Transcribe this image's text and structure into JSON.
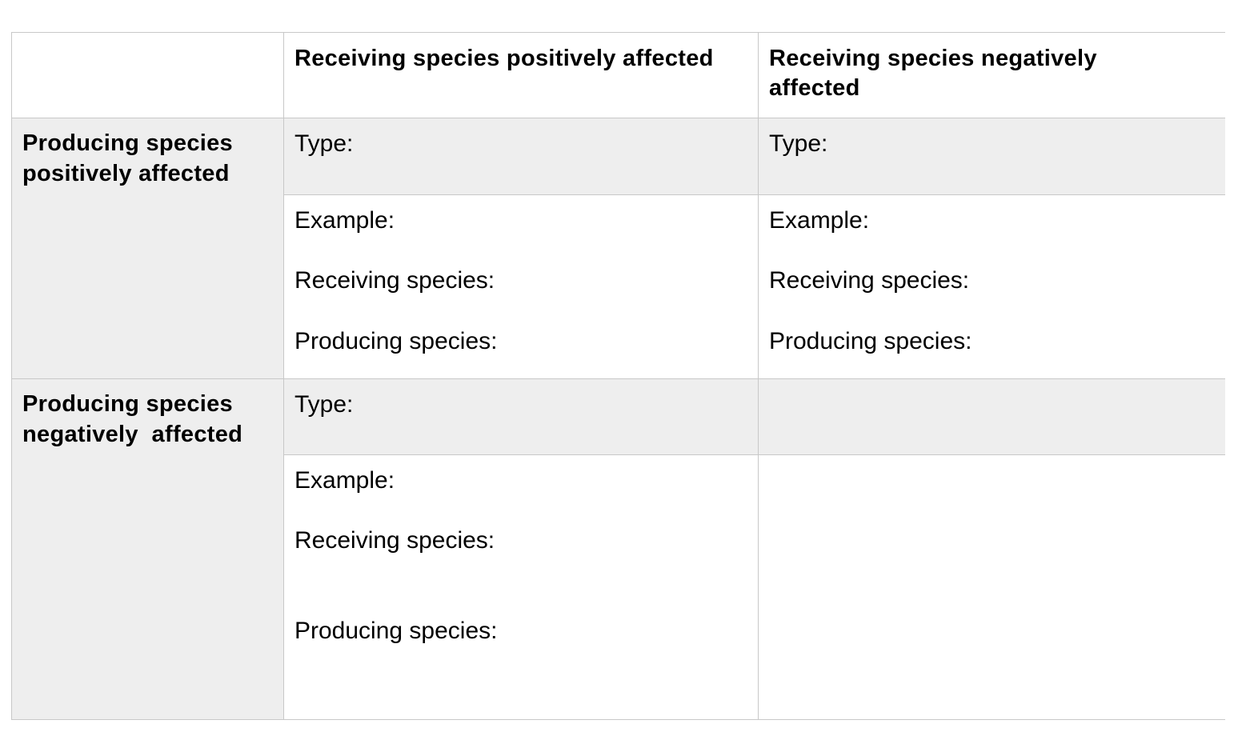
{
  "table": {
    "column_headers": [
      "",
      "Receiving species positively affected",
      "Receiving species negatively affected"
    ],
    "row_headers": [
      "Producing species positively affected",
      "Producing species negatively  affected"
    ],
    "labels": {
      "type": "Type:",
      "example": "Example:",
      "receiving": "Receiving species:",
      "producing": "Producing species:"
    }
  }
}
